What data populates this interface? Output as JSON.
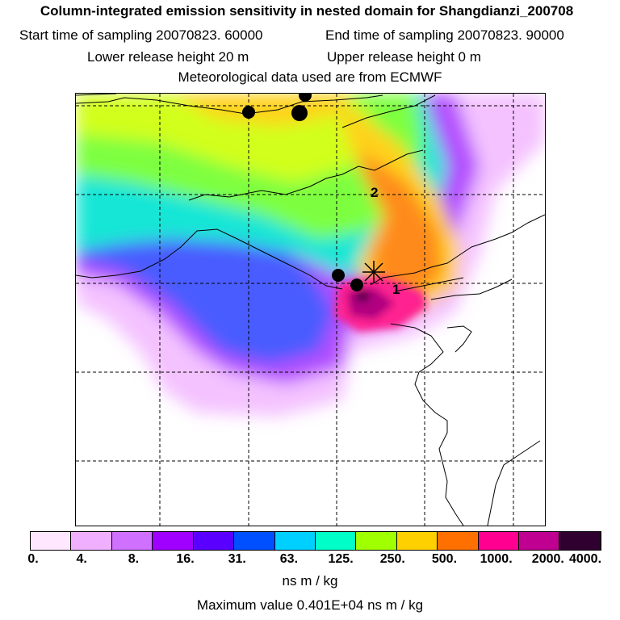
{
  "title": "Column-integrated emission sensitivity in nested domain for Shangdianzi_200708",
  "sampling": {
    "start": "Start time of sampling 20070823. 60000",
    "end": "End time of sampling 20070823. 90000"
  },
  "release": {
    "lower": "Lower release height   20 m",
    "upper": "Upper release height    0 m"
  },
  "meteo": "Meteorological data used are from ECMWF",
  "map": {
    "labels": [
      "1",
      "2"
    ]
  },
  "colorbar": {
    "colors": [
      "#ffe8ff",
      "#f0b0ff",
      "#d070ff",
      "#a000ff",
      "#5a00ff",
      "#0050ff",
      "#00d0ff",
      "#00ffc8",
      "#a0ff00",
      "#ffd000",
      "#ff7000",
      "#ff0090",
      "#c00090",
      "#300030"
    ],
    "tick_labels": [
      "0.",
      "4.",
      "8.",
      "16.",
      "31.",
      "63.",
      "125.",
      "250.",
      "500.",
      "1000.",
      "2000.",
      "4000."
    ],
    "unit": "ns m / kg"
  },
  "max_value": "Maximum value  0.401E+04 ns m / kg"
}
